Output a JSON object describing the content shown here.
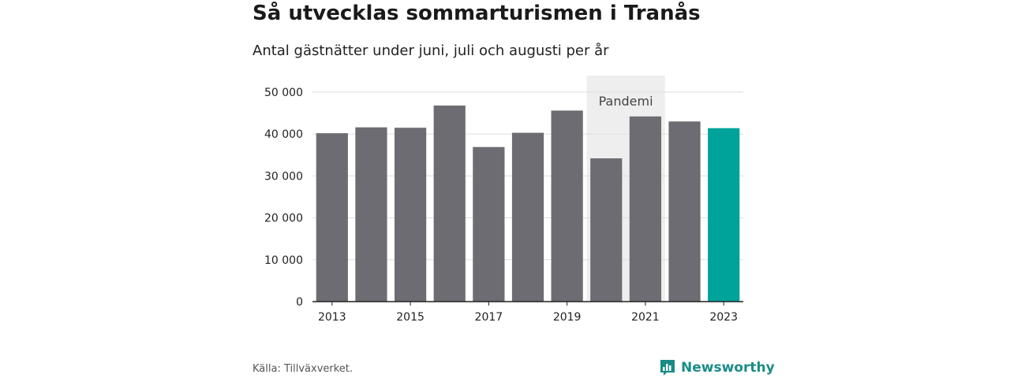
{
  "title": "Så utvecklas sommarturismen i Tranås",
  "subtitle": "Antal gästnätter under juni, juli och augusti per år",
  "source": "Källa: Tillväxverket.",
  "brand": {
    "name": "Newsworthy",
    "logo_icon": "bar-chart-icon"
  },
  "colors": {
    "bar": "#6d6c72",
    "highlight": "#00a39a",
    "pandemic_band": "#eeeeee",
    "grid": "#dddddd",
    "axis": "#222222",
    "brand": "#1a8c87"
  },
  "chart_data": {
    "type": "bar",
    "title": "Så utvecklas sommarturismen i Tranås",
    "subtitle": "Antal gästnätter under juni, juli och augusti per år",
    "xlabel": "",
    "ylabel": "",
    "categories": [
      "2013",
      "2014",
      "2015",
      "2016",
      "2017",
      "2018",
      "2019",
      "2020",
      "2021",
      "2022",
      "2023"
    ],
    "values": [
      40200,
      41600,
      41500,
      46800,
      36900,
      40300,
      45600,
      34200,
      44200,
      43000,
      41400
    ],
    "highlight_category": "2023",
    "ylim": [
      0,
      50000
    ],
    "yticks": [
      0,
      10000,
      20000,
      30000,
      40000,
      50000
    ],
    "ytick_labels": [
      "0",
      "10 000",
      "20 000",
      "30 000",
      "40 000",
      "50 000"
    ],
    "xtick_labels": [
      "2013",
      "2015",
      "2017",
      "2019",
      "2021",
      "2023"
    ],
    "grid": true,
    "annotation": {
      "label": "Pandemi",
      "from": "2020",
      "to": "2021"
    }
  }
}
